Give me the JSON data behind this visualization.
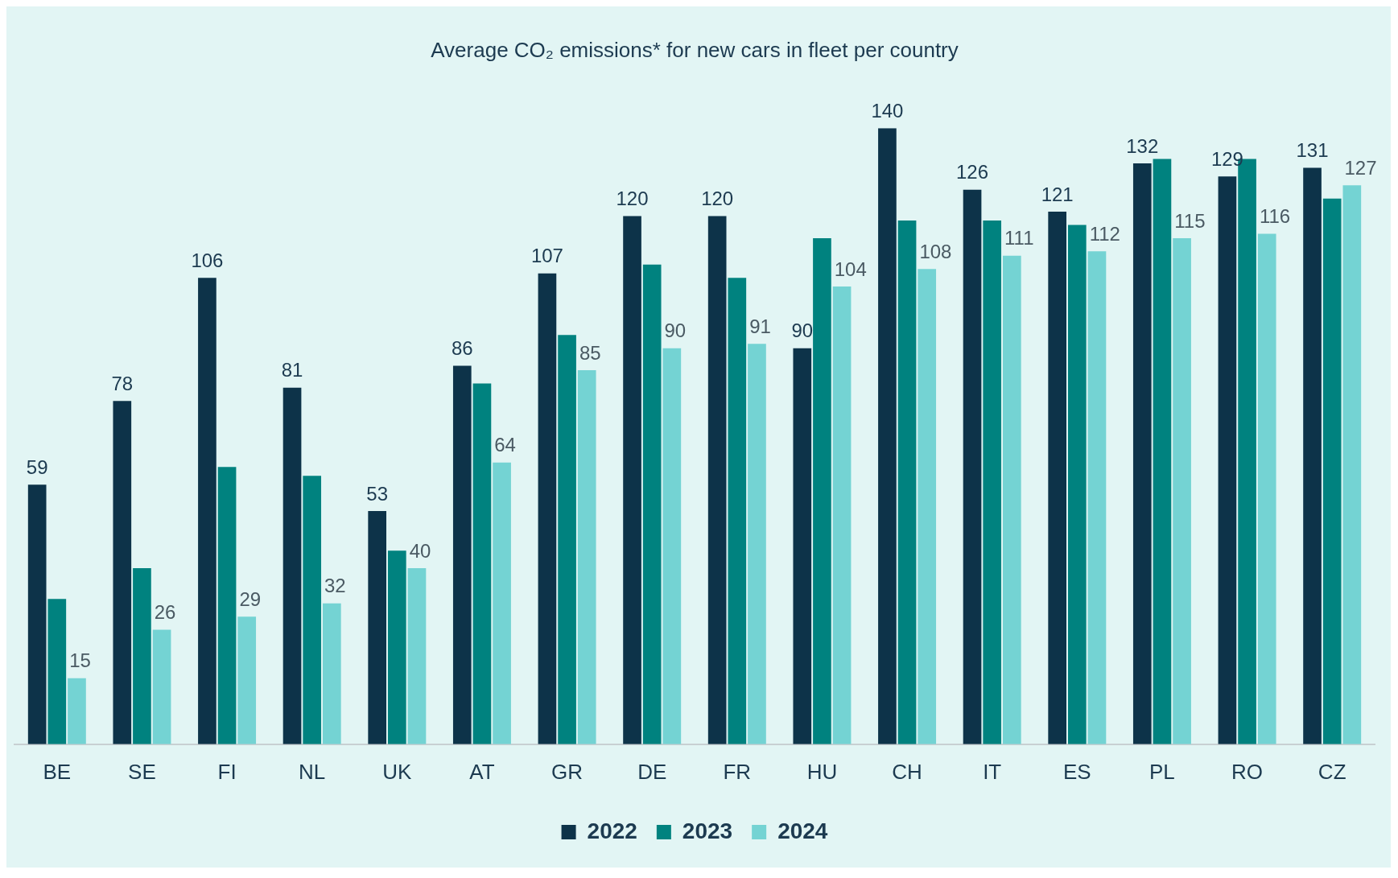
{
  "chart_data": {
    "type": "bar",
    "title": "Average CO₂ emissions* for new cars in fleet per country",
    "categories": [
      "BE",
      "SE",
      "FI",
      "NL",
      "UK",
      "AT",
      "GR",
      "DE",
      "FR",
      "HU",
      "CH",
      "IT",
      "ES",
      "PL",
      "RO",
      "CZ"
    ],
    "legend": "bottom",
    "series": [
      {
        "name": "2022",
        "color": "#0d3349",
        "values": [
          59,
          78,
          106,
          81,
          53,
          86,
          107,
          120,
          120,
          90,
          140,
          126,
          121,
          132,
          129,
          131
        ],
        "value_labels": [
          "59",
          "78",
          "106",
          "81",
          "53",
          "86",
          "107",
          "120",
          "120",
          "90",
          "140",
          "126",
          "121",
          "132",
          "129",
          "131"
        ]
      },
      {
        "name": "2023",
        "color": "#00827f",
        "values": [
          33,
          40,
          63,
          61,
          44,
          82,
          93,
          109,
          106,
          115,
          119,
          119,
          118,
          133,
          133,
          124
        ]
      },
      {
        "name": "2024",
        "color": "#74d3d3",
        "values": [
          15,
          26,
          29,
          32,
          40,
          64,
          85,
          90,
          91,
          104,
          108,
          111,
          112,
          115,
          116,
          127
        ],
        "value_labels": [
          "15",
          "26",
          "29",
          "32",
          "40",
          "64",
          "85",
          "90",
          "91",
          "104",
          "108",
          "111",
          "112",
          "115",
          "116",
          "127"
        ]
      }
    ]
  }
}
